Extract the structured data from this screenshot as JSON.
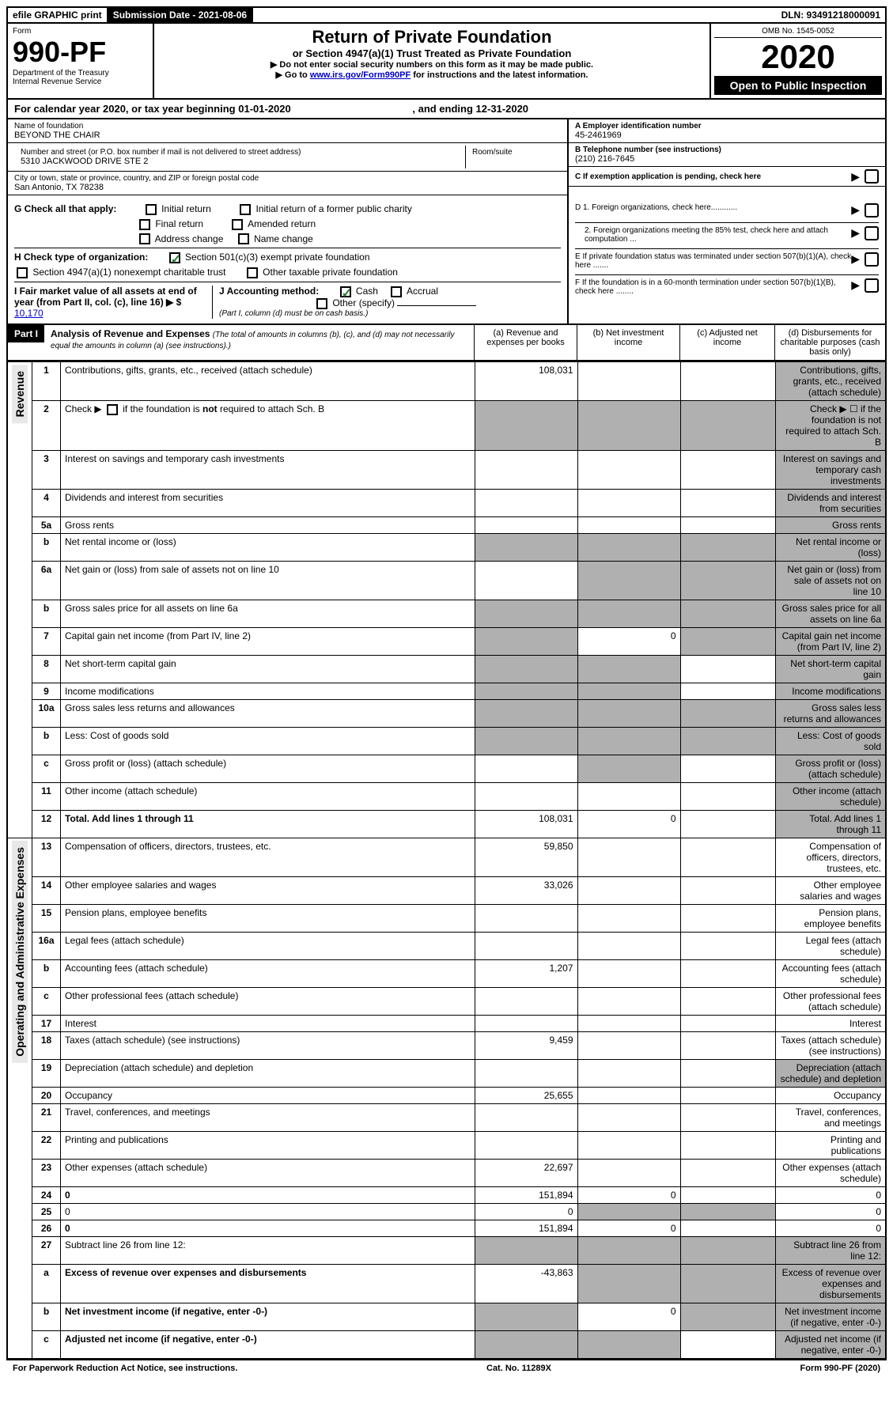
{
  "topbar": {
    "efile": "efile GRAPHIC print",
    "submission": "Submission Date - 2021-08-06",
    "dln": "DLN: 93491218000091"
  },
  "header": {
    "form_label": "Form",
    "form_number": "990-PF",
    "dept": "Department of the Treasury",
    "irs": "Internal Revenue Service",
    "title": "Return of Private Foundation",
    "subtitle": "or Section 4947(a)(1) Trust Treated as Private Foundation",
    "instr1": "▶ Do not enter social security numbers on this form as it may be made public.",
    "instr2_pre": "▶ Go to ",
    "instr2_link": "www.irs.gov/Form990PF",
    "instr2_post": " for instructions and the latest information.",
    "omb": "OMB No. 1545-0052",
    "year": "2020",
    "open": "Open to Public Inspection"
  },
  "calendar": {
    "text_pre": "For calendar year 2020, or tax year beginning ",
    "begin": "01-01-2020",
    "text_mid": " , and ending ",
    "end": "12-31-2020"
  },
  "info": {
    "name_label": "Name of foundation",
    "name": "BEYOND THE CHAIR",
    "addr_label": "Number and street (or P.O. box number if mail is not delivered to street address)",
    "addr": "5310 JACKWOOD DRIVE STE 2",
    "room_label": "Room/suite",
    "city_label": "City or town, state or province, country, and ZIP or foreign postal code",
    "city": "San Antonio, TX  78238",
    "a_label": "A Employer identification number",
    "a_val": "45-2461969",
    "b_label": "B Telephone number (see instructions)",
    "b_val": "(210) 216-7645",
    "c_label": "C If exemption application is pending, check here",
    "d1_label": "D 1. Foreign organizations, check here............",
    "d2_label": "2. Foreign organizations meeting the 85% test, check here and attach computation ...",
    "e_label": "E  If private foundation status was terminated under section 507(b)(1)(A), check here .......",
    "f_label": "F  If the foundation is in a 60-month termination under section 507(b)(1)(B), check here ........"
  },
  "checks": {
    "g_label": "G Check all that apply:",
    "initial": "Initial return",
    "initial_former": "Initial return of a former public charity",
    "final": "Final return",
    "amended": "Amended return",
    "addr_change": "Address change",
    "name_change": "Name change",
    "h_label": "H Check type of organization:",
    "501c3": "Section 501(c)(3) exempt private foundation",
    "4947": "Section 4947(a)(1) nonexempt charitable trust",
    "other_taxable": "Other taxable private foundation",
    "i_label": "I Fair market value of all assets at end of year (from Part II, col. (c), line 16) ▶ $",
    "i_val": "10,170",
    "j_label": "J Accounting method:",
    "cash": "Cash",
    "accrual": "Accrual",
    "other_specify": "Other (specify)",
    "j_note": "(Part I, column (d) must be on cash basis.)"
  },
  "part1": {
    "label": "Part I",
    "title": "Analysis of Revenue and Expenses",
    "note": "(The total of amounts in columns (b), (c), and (d) may not necessarily equal the amounts in column (a) (see instructions).)",
    "col_a": "(a)    Revenue and expenses per books",
    "col_b": "(b)   Net investment income",
    "col_c": "(c)   Adjusted net income",
    "col_d": "(d)   Disbursements for charitable purposes (cash basis only)"
  },
  "sections": {
    "revenue": "Revenue",
    "expenses": "Operating and Administrative Expenses"
  },
  "rows": [
    {
      "n": "1",
      "d": "Contributions, gifts, grants, etc., received (attach schedule)",
      "a": "108,031",
      "shade": [
        "d"
      ]
    },
    {
      "n": "2",
      "d": "Check ▶ ☐ if the foundation is not required to attach Sch. B",
      "shade": [
        "a",
        "b",
        "c",
        "d"
      ],
      "html": true
    },
    {
      "n": "3",
      "d": "Interest on savings and temporary cash investments",
      "shade": [
        "d"
      ]
    },
    {
      "n": "4",
      "d": "Dividends and interest from securities",
      "shade": [
        "d"
      ]
    },
    {
      "n": "5a",
      "d": "Gross rents",
      "shade": [
        "d"
      ]
    },
    {
      "n": "b",
      "d": "Net rental income or (loss)",
      "shade": [
        "a",
        "b",
        "c",
        "d"
      ]
    },
    {
      "n": "6a",
      "d": "Net gain or (loss) from sale of assets not on line 10",
      "shade": [
        "b",
        "c",
        "d"
      ]
    },
    {
      "n": "b",
      "d": "Gross sales price for all assets on line 6a",
      "shade": [
        "a",
        "b",
        "c",
        "d"
      ]
    },
    {
      "n": "7",
      "d": "Capital gain net income (from Part IV, line 2)",
      "b": "0",
      "shade": [
        "a",
        "c",
        "d"
      ]
    },
    {
      "n": "8",
      "d": "Net short-term capital gain",
      "shade": [
        "a",
        "b",
        "d"
      ]
    },
    {
      "n": "9",
      "d": "Income modifications",
      "shade": [
        "a",
        "b",
        "d"
      ]
    },
    {
      "n": "10a",
      "d": "Gross sales less returns and allowances",
      "shade": [
        "a",
        "b",
        "c",
        "d"
      ]
    },
    {
      "n": "b",
      "d": "Less: Cost of goods sold",
      "shade": [
        "a",
        "b",
        "c",
        "d"
      ]
    },
    {
      "n": "c",
      "d": "Gross profit or (loss) (attach schedule)",
      "shade": [
        "b",
        "d"
      ]
    },
    {
      "n": "11",
      "d": "Other income (attach schedule)",
      "shade": [
        "d"
      ]
    },
    {
      "n": "12",
      "d": "Total. Add lines 1 through 11",
      "a": "108,031",
      "b": "0",
      "bold": true,
      "shade": [
        "d"
      ]
    }
  ],
  "exp_rows": [
    {
      "n": "13",
      "d": "Compensation of officers, directors, trustees, etc.",
      "a": "59,850"
    },
    {
      "n": "14",
      "d": "Other employee salaries and wages",
      "a": "33,026"
    },
    {
      "n": "15",
      "d": "Pension plans, employee benefits"
    },
    {
      "n": "16a",
      "d": "Legal fees (attach schedule)"
    },
    {
      "n": "b",
      "d": "Accounting fees (attach schedule)",
      "a": "1,207"
    },
    {
      "n": "c",
      "d": "Other professional fees (attach schedule)"
    },
    {
      "n": "17",
      "d": "Interest"
    },
    {
      "n": "18",
      "d": "Taxes (attach schedule) (see instructions)",
      "a": "9,459"
    },
    {
      "n": "19",
      "d": "Depreciation (attach schedule) and depletion",
      "shade": [
        "d"
      ]
    },
    {
      "n": "20",
      "d": "Occupancy",
      "a": "25,655"
    },
    {
      "n": "21",
      "d": "Travel, conferences, and meetings"
    },
    {
      "n": "22",
      "d": "Printing and publications"
    },
    {
      "n": "23",
      "d": "Other expenses (attach schedule)",
      "a": "22,697"
    },
    {
      "n": "24",
      "d": "0",
      "a": "151,894",
      "b": "0",
      "bold": true
    },
    {
      "n": "25",
      "d": "0",
      "a": "0",
      "shade": [
        "b",
        "c"
      ]
    },
    {
      "n": "26",
      "d": "0",
      "a": "151,894",
      "b": "0",
      "bold": true
    },
    {
      "n": "27",
      "d": "Subtract line 26 from line 12:",
      "shade": [
        "a",
        "b",
        "c",
        "d"
      ]
    },
    {
      "n": "a",
      "d": "Excess of revenue over expenses and disbursements",
      "a": "-43,863",
      "bold": true,
      "shade": [
        "b",
        "c",
        "d"
      ]
    },
    {
      "n": "b",
      "d": "Net investment income (if negative, enter -0-)",
      "b": "0",
      "bold": true,
      "shade": [
        "a",
        "c",
        "d"
      ]
    },
    {
      "n": "c",
      "d": "Adjusted net income (if negative, enter -0-)",
      "bold": true,
      "shade": [
        "a",
        "b",
        "d"
      ]
    }
  ],
  "footer": {
    "left": "For Paperwork Reduction Act Notice, see instructions.",
    "mid": "Cat. No. 11289X",
    "right": "Form 990-PF (2020)"
  }
}
